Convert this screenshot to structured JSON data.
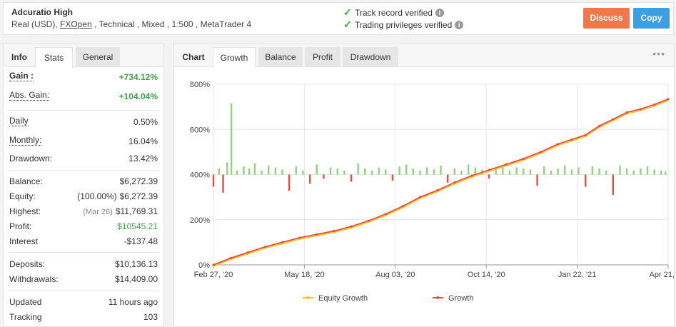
{
  "header": {
    "account_name": "Adcuratio High",
    "desc_prefix": "Real (USD), ",
    "broker": "FXOpen",
    "desc_suffix": " , Technical , Mixed , 1:500 , MetaTrader 4",
    "verified_track": "Track record verified",
    "verified_trading": "Trading privileges verified",
    "discuss_label": "Discuss",
    "copy_label": "Copy"
  },
  "left_tabs": {
    "info": "Info",
    "stats": "Stats",
    "general": "General"
  },
  "stats": {
    "gain_label": "Gain :",
    "gain": "+734.12%",
    "abs_gain_label": "Abs. Gain:",
    "abs_gain": "+104.04%",
    "daily_label": "Daily",
    "daily": "0.50%",
    "monthly_label": "Monthly:",
    "monthly": "16.04%",
    "drawdown_label": "Drawdown:",
    "drawdown": "13.42%",
    "balance_label": "Balance:",
    "balance": "$6,272.39",
    "equity_label": "Equity:",
    "equity_pct": "(100.00%)",
    "equity": "$6,272.39",
    "highest_label": "Highest:",
    "highest_date": "(Mar 26)",
    "highest": "$11,769.31",
    "profit_label": "Profit:",
    "profit": "$10545.21",
    "interest_label": "Interest",
    "interest": "-$137.48",
    "deposits_label": "Deposits:",
    "deposits": "$10,136.13",
    "withdrawals_label": "Withdrawals:",
    "withdrawals": "$14,409.00",
    "updated_label": "Updated",
    "updated": "11 hours ago",
    "tracking_label": "Tracking",
    "tracking": "103"
  },
  "chart_tabs": {
    "chart": "Chart",
    "growth": "Growth",
    "balance": "Balance",
    "profit": "Profit",
    "drawdown": "Drawdown"
  },
  "colors": {
    "growth": "#e84c3d",
    "equity_growth": "#f2c511",
    "bar_pos": "#8fd47a",
    "bar_neg": "#e84c3d"
  },
  "chart_data": {
    "type": "line",
    "y_tick_labels": [
      "0%",
      "200%",
      "400%",
      "600%",
      "800%"
    ],
    "ylim": [
      0,
      800
    ],
    "x_tick_labels": [
      "Feb 27, '20",
      "May 18, '20",
      "Aug 03, '20",
      "Oct 14, '20",
      "Jan 22, '21",
      "Apr 21, '21"
    ],
    "legend": [
      "Equity Growth",
      "Growth"
    ],
    "series": [
      {
        "name": "Growth",
        "x": [
          0,
          25,
          50,
          75,
          100,
          125,
          150,
          175,
          200,
          225,
          250,
          275,
          300,
          325,
          350,
          375,
          400,
          425,
          450,
          475,
          500,
          520,
          540,
          560,
          580,
          600,
          620,
          640,
          660
        ],
        "values": [
          0,
          30,
          55,
          80,
          100,
          120,
          135,
          150,
          170,
          195,
          225,
          260,
          300,
          330,
          365,
          395,
          420,
          445,
          470,
          500,
          535,
          555,
          575,
          615,
          645,
          675,
          690,
          710,
          734
        ]
      }
    ],
    "bar_series": {
      "x": [
        0,
        8,
        14,
        20,
        26,
        34,
        44,
        52,
        60,
        70,
        80,
        90,
        100,
        110,
        120,
        130,
        140,
        150,
        160,
        170,
        180,
        190,
        200,
        210,
        220,
        230,
        240,
        250,
        260,
        270,
        280,
        290,
        300,
        310,
        320,
        330,
        340,
        350,
        360,
        370,
        380,
        390,
        400,
        410,
        420,
        430,
        440,
        450,
        460,
        470,
        480,
        490,
        500,
        510,
        520,
        530,
        540,
        550,
        560,
        570,
        580,
        590,
        600,
        610,
        620,
        630,
        640,
        650,
        656
      ],
      "values": [
        -120,
        60,
        -180,
        120,
        700,
        40,
        80,
        60,
        110,
        40,
        90,
        70,
        50,
        -160,
        80,
        40,
        -90,
        100,
        -40,
        70,
        60,
        40,
        -70,
        110,
        60,
        40,
        70,
        50,
        -60,
        80,
        100,
        60,
        40,
        70,
        50,
        90,
        -80,
        60,
        40,
        100,
        70,
        50,
        -40,
        60,
        90,
        40,
        70,
        60,
        50,
        -110,
        80,
        40,
        60,
        90,
        50,
        70,
        -120,
        80,
        60,
        40,
        -200,
        90,
        60,
        40,
        60,
        80,
        50,
        40,
        30
      ]
    }
  }
}
